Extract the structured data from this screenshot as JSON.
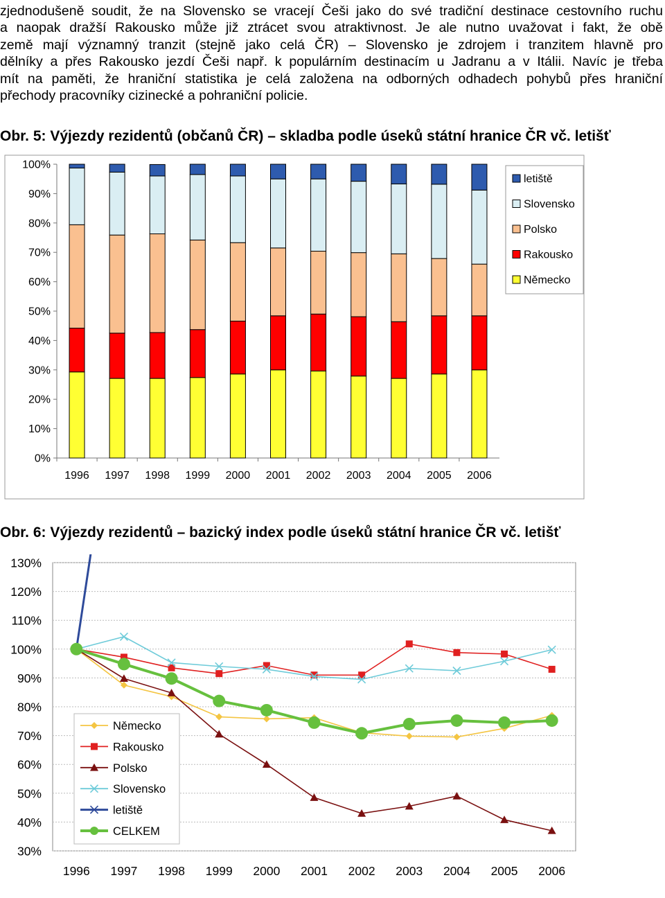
{
  "paragraph": [
    "zjednodušeně soudit, že na Slovensko se vracejí Češi jako do své tradiční destinace cestovního ruchu",
    "a naopak dražší Rakousko může již ztrácet svou atraktivnost. Je ale nutno uvažovat i fakt, že obě",
    "země mají významný tranzit (stejně jako celá ČR) – Slovensko je zdrojem i tranzitem hlavně pro",
    "dělníky a přes Rakousko jezdí Češi např. k populárním destinacím u Jadranu a v Itálii. Navíc je třeba",
    "mít na paměti, že hraniční statistika je celá založena na odborných odhadech pohybů přes hraniční",
    "přechody pracovníky cizinecké a pohraniční policie."
  ],
  "figure5": {
    "caption": "Obr. 5: Výjezdy rezidentů (občanů ČR) – skladba podle úseků státní hranice ČR vč. letišť"
  },
  "figure6": {
    "caption": "Obr. 6: Výjezdy rezidentů – bazický index podle úseků státní hranice ČR vč. letišť"
  },
  "chart_data": [
    {
      "type": "bar",
      "stacked": true,
      "percent": true,
      "categories": [
        "1996",
        "1997",
        "1998",
        "1999",
        "2000",
        "2001",
        "2002",
        "2003",
        "2004",
        "2005",
        "2006"
      ],
      "y_ticks": [
        "0%",
        "10%",
        "20%",
        "30%",
        "40%",
        "50%",
        "60%",
        "70%",
        "80%",
        "90%",
        "100%"
      ],
      "ylim": [
        0,
        100
      ],
      "legend_position": "right",
      "series": [
        {
          "name": "Německo",
          "color": "#ffff33",
          "values": [
            29.3,
            27.1,
            27.1,
            27.4,
            28.6,
            30.0,
            29.6,
            27.9,
            27.1,
            28.6,
            30.0
          ]
        },
        {
          "name": "Rakousko",
          "color": "#ff0000",
          "values": [
            14.9,
            15.4,
            15.6,
            16.3,
            18.0,
            18.4,
            19.4,
            20.2,
            19.3,
            19.8,
            18.4
          ]
        },
        {
          "name": "Polsko",
          "color": "#fac090",
          "values": [
            35.2,
            33.4,
            33.6,
            30.5,
            26.7,
            23.1,
            21.4,
            21.8,
            23.1,
            19.5,
            17.6
          ]
        },
        {
          "name": "Slovensko",
          "color": "#daeef3",
          "values": [
            19.3,
            21.4,
            19.7,
            22.3,
            22.7,
            23.5,
            24.6,
            24.3,
            23.8,
            25.3,
            25.2
          ]
        },
        {
          "name": "letiště",
          "color": "#2e5bae",
          "values": [
            1.3,
            2.7,
            3.9,
            3.5,
            4.0,
            5.0,
            5.0,
            5.8,
            6.7,
            6.8,
            8.8
          ]
        }
      ]
    },
    {
      "type": "line",
      "categories": [
        "1996",
        "1997",
        "1998",
        "1999",
        "2000",
        "2001",
        "2002",
        "2003",
        "2004",
        "2005",
        "2006"
      ],
      "y_ticks": [
        "30%",
        "40%",
        "50%",
        "60%",
        "70%",
        "80%",
        "90%",
        "100%",
        "110%",
        "120%",
        "130%"
      ],
      "ylim": [
        30,
        130
      ],
      "grid": true,
      "legend_position": "bottom-left inside plot",
      "series": [
        {
          "name": "Německo",
          "color": "#f4c542",
          "marker": "diamond",
          "values": [
            100,
            87.5,
            83.5,
            76.5,
            75.8,
            76.2,
            71.0,
            69.8,
            69.5,
            72.5,
            77.0
          ]
        },
        {
          "name": "Rakousko",
          "color": "#e02020",
          "marker": "square",
          "values": [
            100,
            97.2,
            93.5,
            91.5,
            94.3,
            91.0,
            91.0,
            101.8,
            98.8,
            98.3,
            93.0
          ]
        },
        {
          "name": "Polsko",
          "color": "#7a1010",
          "marker": "triangle",
          "values": [
            100,
            89.8,
            84.8,
            70.5,
            60.0,
            48.5,
            43.0,
            45.5,
            49.0,
            40.8,
            37.0
          ]
        },
        {
          "name": "Slovensko",
          "color": "#6ecbd9",
          "marker": "x",
          "values": [
            100,
            104.3,
            95.3,
            94.0,
            93.0,
            90.5,
            89.5,
            93.3,
            92.5,
            95.8,
            99.8
          ]
        },
        {
          "name": "letiště",
          "color": "#2e4a9a",
          "marker": "x",
          "values": [
            100,
            210,
            null,
            null,
            null,
            null,
            null,
            null,
            null,
            null,
            null
          ]
        },
        {
          "name": "CELKEM",
          "color": "#66c03e",
          "marker": "circle",
          "values": [
            100,
            94.8,
            89.8,
            82.0,
            78.8,
            74.5,
            70.8,
            74.0,
            75.2,
            74.5,
            75.2
          ]
        }
      ]
    }
  ]
}
